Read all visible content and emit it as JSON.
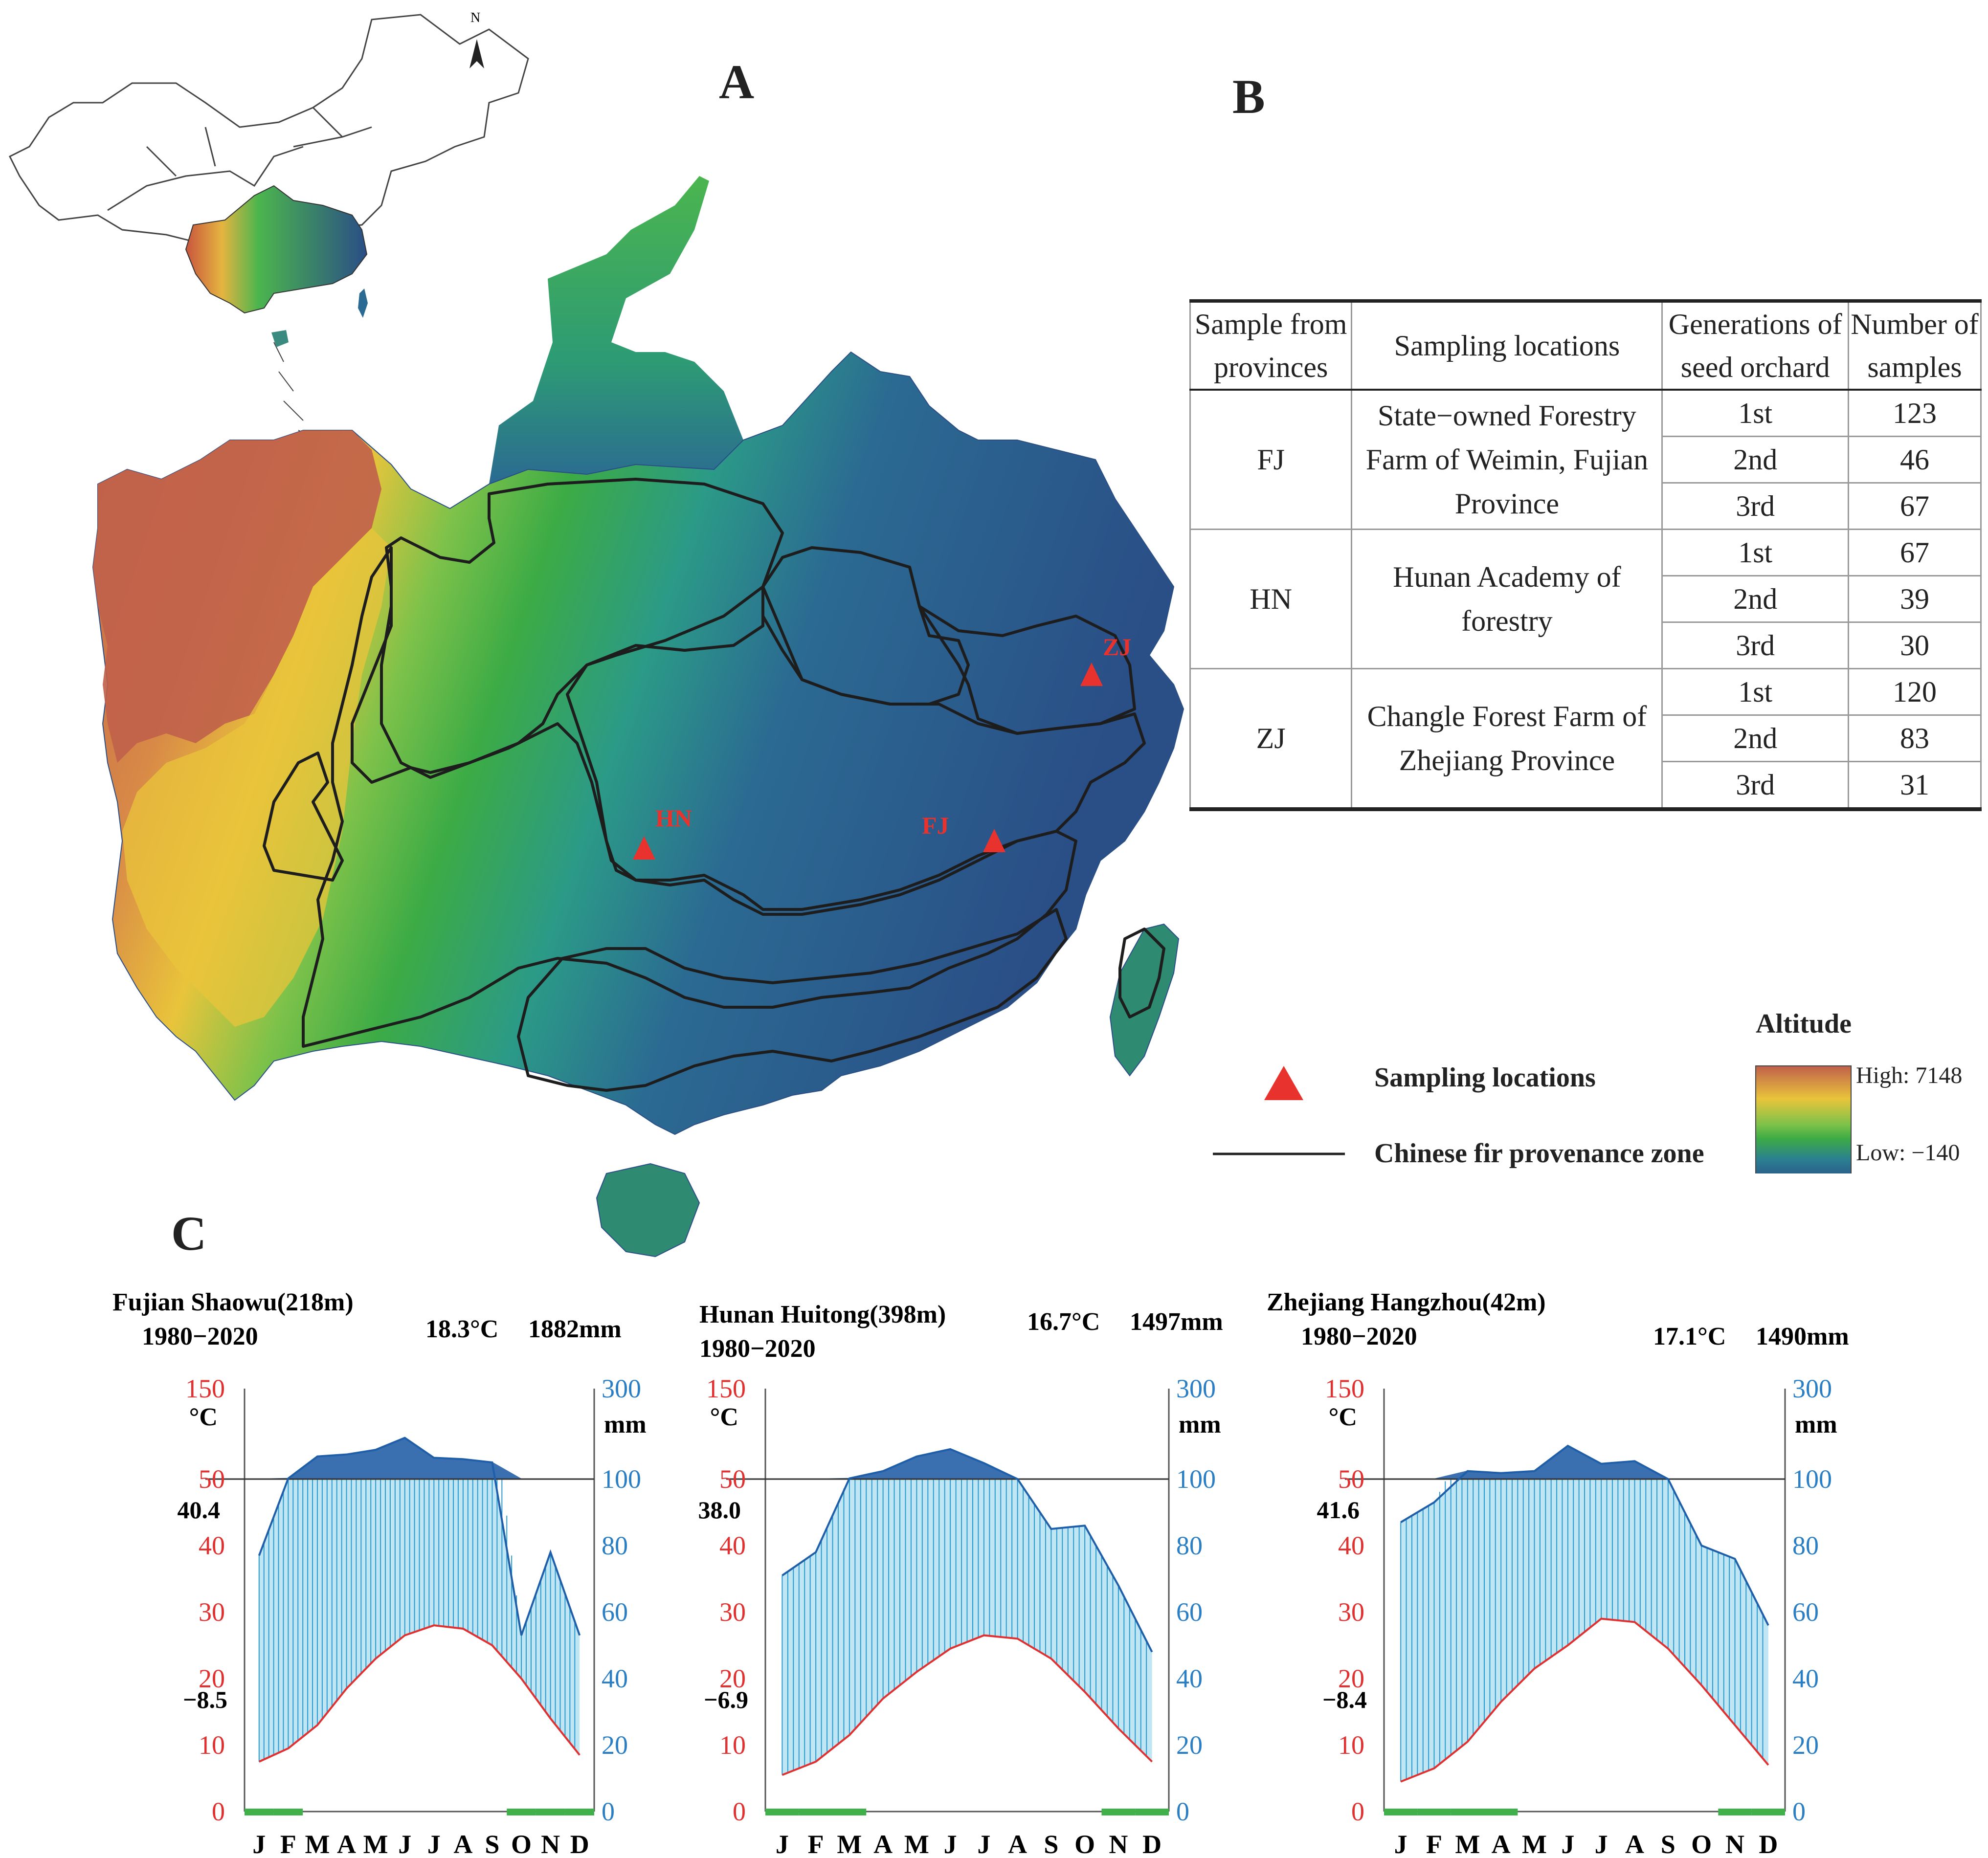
{
  "panels": {
    "a": "A",
    "b": "B",
    "c": "C"
  },
  "compass": {
    "north": "N"
  },
  "sites": [
    {
      "code": "HN",
      "lon": 109.7,
      "lat": 26.9
    },
    {
      "code": "FJ",
      "lon": 117.5,
      "lat": 27.3
    },
    {
      "code": "ZJ",
      "lon": 119.9,
      "lat": 30.2
    }
  ],
  "legend": {
    "sampling_label": "Sampling locations",
    "zone_label": "Chinese fir provenance zone",
    "altitude_title": "Altitude",
    "altitude_high": "High: 7148",
    "altitude_low": "Low: −140",
    "colors": {
      "marker": "#e8322e",
      "high": "#c0604a",
      "mid": "#e9c43b",
      "green": "#3cab45",
      "low": "#2a4e86"
    }
  },
  "table": {
    "headers": [
      "Sample from provinces",
      "Sampling locations",
      "Generations of seed orchard",
      "Number of samples"
    ],
    "groups": [
      {
        "province": "FJ",
        "location": "State−owned Forestry Farm of Weimin, Fujian Province",
        "rows": [
          {
            "gen": "1st",
            "n": "123"
          },
          {
            "gen": "2nd",
            "n": "46"
          },
          {
            "gen": "3rd",
            "n": "67"
          }
        ]
      },
      {
        "province": "HN",
        "location": "Hunan Academy of forestry",
        "rows": [
          {
            "gen": "1st",
            "n": "67"
          },
          {
            "gen": "2nd",
            "n": "39"
          },
          {
            "gen": "3rd",
            "n": "30"
          }
        ]
      },
      {
        "province": "ZJ",
        "location": "Changle Forest Farm of Zhejiang Province",
        "rows": [
          {
            "gen": "1st",
            "n": "120"
          },
          {
            "gen": "2nd",
            "n": "83"
          },
          {
            "gen": "3rd",
            "n": "31"
          }
        ]
      }
    ]
  },
  "chart_data": [
    {
      "type": "line",
      "station": "Fujian Shaowu(218m)",
      "period": "1980−2020",
      "mean_temp": "18.3°C",
      "annual_precip": "1882mm",
      "temp_unit": "°C",
      "precip_unit": "mm",
      "extreme_max": "40.4",
      "extreme_min": "−8.5",
      "code": "FJ",
      "months": [
        "J",
        "F",
        "M",
        "A",
        "M",
        "J",
        "J",
        "A",
        "S",
        "O",
        "N",
        "D"
      ],
      "temperature": [
        7.5,
        9.5,
        13,
        18.5,
        23,
        26.5,
        28,
        27.5,
        25,
        20,
        14,
        8.5
      ],
      "precipitation": [
        77,
        101,
        134,
        137,
        144,
        162,
        132,
        130,
        125,
        53,
        78,
        53
      ],
      "frost_months": [
        1,
        2,
        10,
        11,
        12
      ],
      "left_ticks": [
        "0",
        "10",
        "20",
        "30",
        "40",
        "50",
        "150"
      ],
      "right_ticks": [
        "0",
        "20",
        "40",
        "60",
        "80",
        "100",
        "300"
      ]
    },
    {
      "type": "line",
      "station": "Hunan Huitong(398m)",
      "period": "1980−2020",
      "mean_temp": "16.7°C",
      "annual_precip": "1497mm",
      "temp_unit": "°C",
      "precip_unit": "mm",
      "extreme_max": "38.0",
      "extreme_min": "−6.9",
      "code": "HN",
      "months": [
        "J",
        "F",
        "M",
        "A",
        "M",
        "J",
        "J",
        "A",
        "S",
        "O",
        "N",
        "D"
      ],
      "temperature": [
        5.5,
        7.5,
        11.5,
        17,
        21,
        24.5,
        26.5,
        26,
        23,
        18,
        12.5,
        7.5
      ],
      "precipitation": [
        71,
        78,
        101,
        112,
        134,
        145,
        124,
        100,
        85,
        86,
        68,
        48
      ],
      "frost_months": [
        1,
        2,
        3,
        11,
        12
      ],
      "left_ticks": [
        "0",
        "10",
        "20",
        "30",
        "40",
        "50",
        "150"
      ],
      "right_ticks": [
        "0",
        "20",
        "40",
        "60",
        "80",
        "100",
        "300"
      ]
    },
    {
      "type": "line",
      "station": "Zhejiang Hangzhou(42m)",
      "period": "1980−2020",
      "mean_temp": "17.1°C",
      "annual_precip": "1490mm",
      "temp_unit": "°C",
      "precip_unit": "mm",
      "extreme_max": "41.6",
      "extreme_min": "−8.4",
      "code": "ZJ",
      "months": [
        "J",
        "F",
        "M",
        "A",
        "M",
        "J",
        "J",
        "A",
        "S",
        "O",
        "N",
        "D"
      ],
      "temperature": [
        4.5,
        6.5,
        10.5,
        16.5,
        21.5,
        25,
        29,
        28.5,
        24.5,
        19,
        13,
        7
      ],
      "precipitation": [
        87,
        93,
        112,
        109,
        112,
        150,
        123,
        127,
        100,
        80,
        76,
        56
      ],
      "frost_months": [
        1,
        2,
        3,
        4,
        11,
        12
      ],
      "left_ticks": [
        "0",
        "10",
        "20",
        "30",
        "40",
        "50",
        "150"
      ],
      "right_ticks": [
        "0",
        "20",
        "40",
        "60",
        "80",
        "100",
        "300"
      ]
    }
  ]
}
